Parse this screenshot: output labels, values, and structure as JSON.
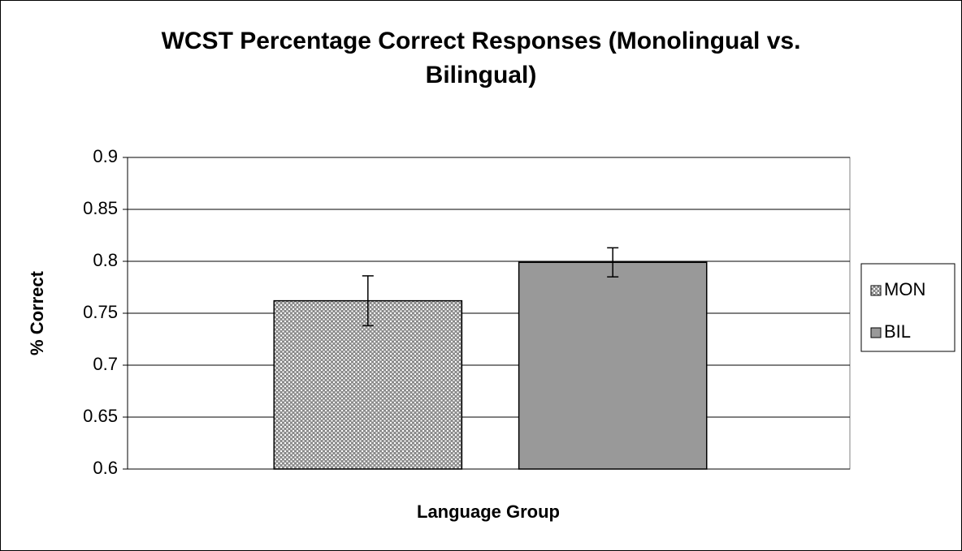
{
  "chart_data": {
    "type": "bar",
    "title": "WCST Percentage Correct Responses (Monolingual vs. Bilingual)",
    "x_label": "Language Group",
    "y_label": "% Correct",
    "categories": [
      null
    ],
    "series": [
      {
        "name": "MON",
        "color": "#999999",
        "pattern": "dotted",
        "values": [
          0.762
        ],
        "errors": [
          0.024
        ]
      },
      {
        "name": "BIL",
        "color": "#999999",
        "values": [
          0.799
        ],
        "errors": [
          0.014
        ]
      }
    ],
    "ylim": [
      0.6,
      0.9
    ],
    "yticks": [
      0.6,
      0.65,
      0.7,
      0.75,
      0.8,
      0.85,
      0.9
    ],
    "grid": true,
    "legend": "right"
  }
}
